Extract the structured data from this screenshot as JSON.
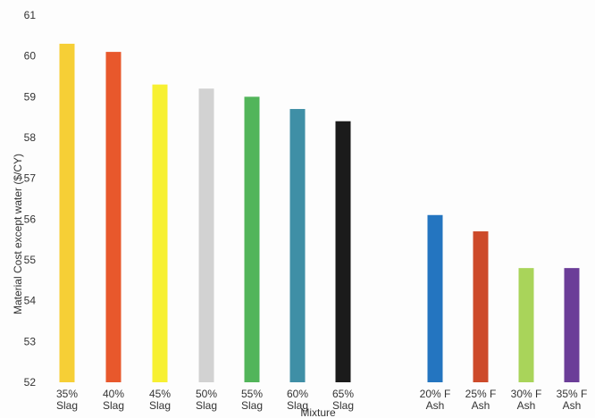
{
  "chart_data": {
    "type": "bar",
    "title": "",
    "xlabel": "Mixture",
    "ylabel": "Material Cost except water ($/CY)",
    "ylim": [
      52,
      61
    ],
    "yticks": [
      52,
      53,
      54,
      55,
      56,
      57,
      58,
      59,
      60,
      61
    ],
    "grid": false,
    "legend": "none",
    "categories": [
      [
        "35%",
        "Slag"
      ],
      [
        "40%",
        "Slag"
      ],
      [
        "45%",
        "Slag"
      ],
      [
        "50%",
        "Slag"
      ],
      [
        "55%",
        "Slag"
      ],
      [
        "60%",
        "Slag"
      ],
      [
        "65%",
        "Slag"
      ],
      [
        "20% F",
        "Ash"
      ],
      [
        "25% F",
        "Ash"
      ],
      [
        "30% F",
        "Ash"
      ],
      [
        "35% F",
        "Ash"
      ]
    ],
    "values": [
      60.3,
      60.1,
      59.3,
      59.2,
      59.0,
      58.7,
      58.4,
      56.1,
      55.7,
      54.8,
      54.8
    ],
    "colors": [
      "#f6cf36",
      "#e8582c",
      "#f7f032",
      "#d2d2d2",
      "#52b55a",
      "#3f8fa6",
      "#1b1b1b",
      "#2475c0",
      "#cd4a2a",
      "#a9d45a",
      "#6b3d98"
    ]
  }
}
